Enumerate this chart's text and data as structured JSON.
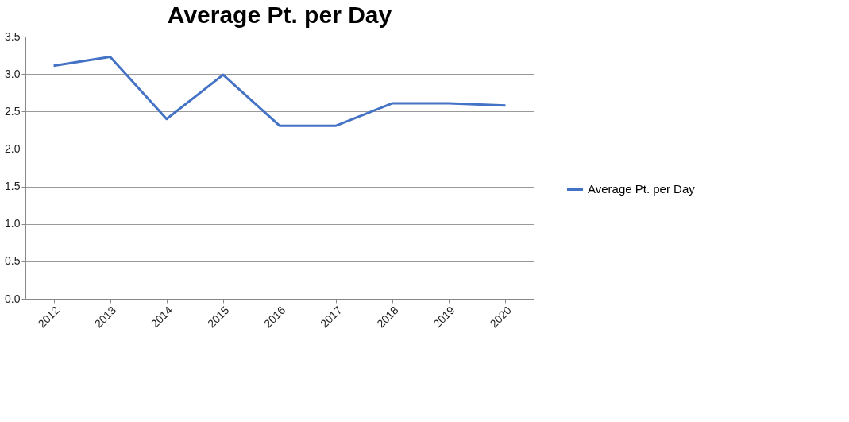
{
  "chart_data": {
    "type": "line",
    "title": "Average Pt. per Day",
    "categories": [
      "2012",
      "2013",
      "2014",
      "2015",
      "2016",
      "2017",
      "2018",
      "2019",
      "2020"
    ],
    "series": [
      {
        "name": "Average Pt. per Day",
        "color": "#4472c4",
        "values": [
          3.11,
          3.23,
          2.4,
          2.99,
          2.31,
          2.31,
          2.61,
          2.61,
          2.58
        ]
      }
    ],
    "ylim": [
      0,
      3.5
    ],
    "yticks": [
      {
        "value": 0,
        "label": "0.0"
      },
      {
        "value": 0.5,
        "label": "0.5"
      },
      {
        "value": 1,
        "label": "1.0"
      },
      {
        "value": 1.5,
        "label": "1.5"
      },
      {
        "value": 2,
        "label": "2.0"
      },
      {
        "value": 2.5,
        "label": "2.5"
      },
      {
        "value": 3,
        "label": "3.0"
      },
      {
        "value": 3.5,
        "label": "3.5"
      }
    ],
    "grid": "y",
    "legend": "right",
    "marker": "none",
    "line_style": "solid"
  }
}
